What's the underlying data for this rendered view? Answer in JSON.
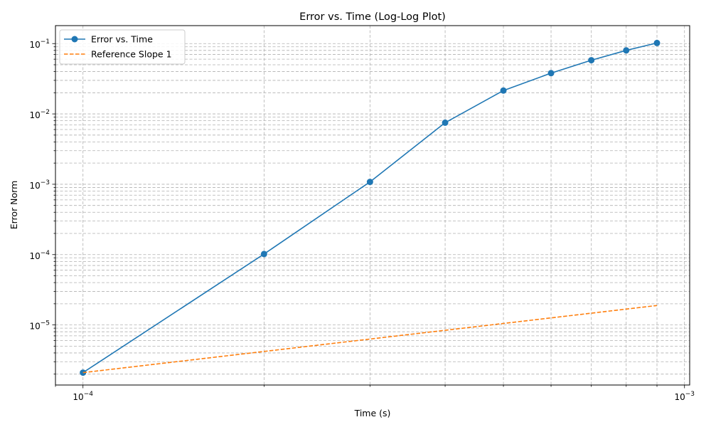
{
  "chart_data": {
    "type": "line",
    "title": "Error vs. Time (Log-Log Plot)",
    "xlabel": "Time (s)",
    "ylabel": "Error Norm",
    "xscale": "log",
    "yscale": "log",
    "xlim": [
      9e-05,
      0.00102
    ],
    "ylim": [
      1.4e-06,
      0.18
    ],
    "grid": true,
    "legend_position": "top-left",
    "x_ticks": [
      {
        "value": 0.0001,
        "mantissa": "10",
        "exponent": "−4"
      },
      {
        "value": 0.001,
        "mantissa": "10",
        "exponent": "−3"
      }
    ],
    "y_ticks": [
      {
        "value": 1e-05,
        "mantissa": "10",
        "exponent": "−5"
      },
      {
        "value": 0.0001,
        "mantissa": "10",
        "exponent": "−4"
      },
      {
        "value": 0.001,
        "mantissa": "10",
        "exponent": "−3"
      },
      {
        "value": 0.01,
        "mantissa": "10",
        "exponent": "−2"
      },
      {
        "value": 0.1,
        "mantissa": "10",
        "exponent": "−1"
      }
    ],
    "series": [
      {
        "name": "Error vs. Time",
        "color": "#1f77b4",
        "style": "solid",
        "marker": "circle",
        "x": [
          0.0001,
          0.0002,
          0.0003,
          0.0004,
          0.0005,
          0.0006,
          0.0007,
          0.0008,
          0.0009
        ],
        "y": [
          2.1e-06,
          0.000102,
          0.00108,
          0.0075,
          0.0215,
          0.038,
          0.058,
          0.08,
          0.102
        ]
      },
      {
        "name": "Reference Slope 1",
        "color": "#ff7f0e",
        "style": "dashed",
        "marker": "none",
        "x": [
          0.0001,
          0.0002,
          0.0003,
          0.0004,
          0.0005,
          0.0006,
          0.0007,
          0.0008,
          0.0009
        ],
        "y": [
          2.1e-06,
          4.2e-06,
          6.3e-06,
          8.4e-06,
          1.05e-05,
          1.26e-05,
          1.47e-05,
          1.68e-05,
          1.89e-05
        ]
      }
    ]
  }
}
